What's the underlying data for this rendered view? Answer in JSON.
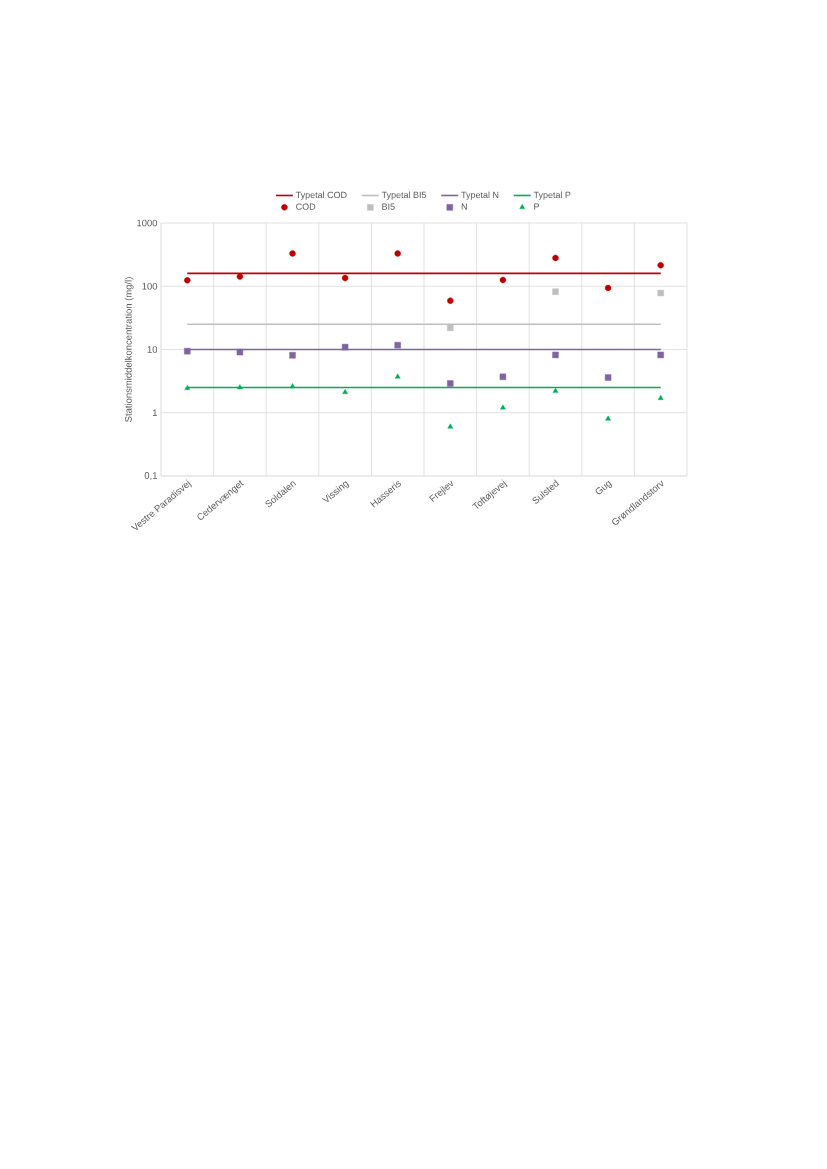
{
  "chart_data": {
    "type": "scatter",
    "ylabel": "Stationsmiddelkoncentration (mg/l)",
    "categories": [
      "Vestre Paradisvej",
      "Cedervænget",
      "Soldalen",
      "Vissing",
      "Hasseris",
      "Frejlev",
      "Toftøjevej",
      "Sulsted",
      "Gug",
      "Grøndlandstorv"
    ],
    "log": "y",
    "ylim": [
      0.1,
      1000
    ],
    "yticks": [
      {
        "value": 0.1,
        "label": "0,1"
      },
      1,
      10,
      100,
      1000
    ],
    "grid": true,
    "legend": "top",
    "series": [
      {
        "name": "Typetal COD",
        "type": "line",
        "line_style": "solid",
        "color": "#c00000",
        "values": [
          160,
          160,
          160,
          160,
          160,
          160,
          160,
          160,
          160,
          160
        ]
      },
      {
        "name": "Typetal BI5",
        "type": "line",
        "line_style": "solid",
        "color": "#bfbfbf",
        "values": [
          25,
          25,
          25,
          25,
          25,
          25,
          25,
          25,
          25,
          25
        ]
      },
      {
        "name": "Typetal N",
        "type": "line",
        "line_style": "solid",
        "color": "#8064a2",
        "values": [
          10,
          10,
          10,
          10,
          10,
          10,
          10,
          10,
          10,
          10
        ]
      },
      {
        "name": "Typetal P",
        "type": "line",
        "line_style": "solid",
        "color": "#00b050",
        "values": [
          2.5,
          2.5,
          2.5,
          2.5,
          2.5,
          2.5,
          2.5,
          2.5,
          2.5,
          2.5
        ]
      },
      {
        "name": "COD",
        "marker": "circle",
        "color": "#c00000",
        "values": [
          124,
          142,
          330,
          135,
          330,
          59,
          126,
          280,
          94,
          215
        ]
      },
      {
        "name": "BI5",
        "marker": "square",
        "color": "#bfbfbf",
        "values": [
          null,
          null,
          null,
          null,
          null,
          22,
          null,
          82,
          null,
          78
        ]
      },
      {
        "name": "N",
        "marker": "square",
        "color": "#8064a2",
        "values": [
          9.4,
          9.1,
          8.1,
          10.9,
          11.7,
          2.9,
          3.7,
          8.2,
          3.6,
          8.2
        ]
      },
      {
        "name": "P",
        "marker": "triangle",
        "color": "#00b050",
        "values": [
          2.45,
          2.5,
          2.6,
          2.1,
          3.7,
          0.6,
          1.2,
          2.2,
          0.8,
          1.7
        ]
      }
    ]
  }
}
